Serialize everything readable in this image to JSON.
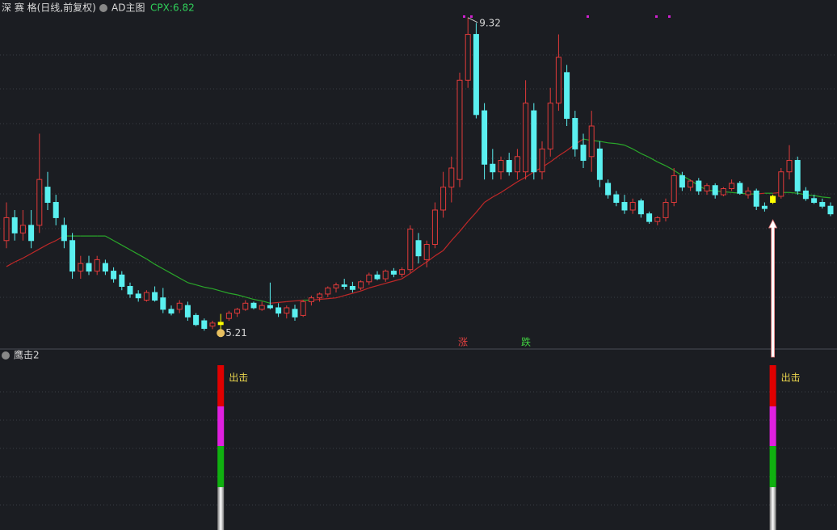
{
  "chart_data": {
    "type": "candlestick",
    "title": "深 赛 格(日线,前复权)",
    "indicator": "AD主图",
    "cpx_label": "CPX:",
    "cpx": 6.82,
    "rise_label": "涨",
    "fall_label": "跌",
    "max_label": 9.32,
    "min_label": 5.21,
    "panel2_title": "鹰击2",
    "signal_label": "出击",
    "ylim": [
      4.98,
      9.36
    ],
    "ohlc": [
      [
        6.4,
        6.9,
        6.3,
        6.7
      ],
      [
        6.7,
        6.8,
        6.4,
        6.5
      ],
      [
        6.5,
        6.8,
        6.4,
        6.6
      ],
      [
        6.6,
        6.8,
        6.3,
        6.4
      ],
      [
        6.6,
        7.8,
        6.5,
        7.2
      ],
      [
        7.1,
        7.3,
        6.8,
        6.9
      ],
      [
        6.9,
        7.0,
        6.6,
        6.7
      ],
      [
        6.6,
        6.7,
        6.3,
        6.4
      ],
      [
        6.4,
        6.5,
        5.9,
        6.0
      ],
      [
        6.0,
        6.2,
        5.9,
        6.1
      ],
      [
        6.1,
        6.2,
        5.95,
        6.0
      ],
      [
        6.0,
        6.2,
        5.95,
        6.15
      ],
      [
        6.1,
        6.15,
        5.95,
        6.0
      ],
      [
        6.0,
        6.05,
        5.85,
        5.9
      ],
      [
        5.95,
        6.0,
        5.75,
        5.8
      ],
      [
        5.8,
        5.85,
        5.65,
        5.7
      ],
      [
        5.7,
        5.75,
        5.6,
        5.65
      ],
      [
        5.62,
        5.75,
        5.6,
        5.72
      ],
      [
        5.72,
        5.8,
        5.6,
        5.62
      ],
      [
        5.65,
        5.78,
        5.45,
        5.5
      ],
      [
        5.5,
        5.55,
        5.42,
        5.45
      ],
      [
        5.5,
        5.62,
        5.45,
        5.58
      ],
      [
        5.55,
        5.6,
        5.35,
        5.4
      ],
      [
        5.42,
        5.45,
        5.28,
        5.3
      ],
      [
        5.35,
        5.38,
        5.22,
        5.25
      ],
      [
        5.28,
        5.35,
        5.24,
        5.32
      ],
      [
        5.33,
        5.44,
        5.21,
        5.3
      ],
      [
        5.38,
        5.48,
        5.35,
        5.45
      ],
      [
        5.45,
        5.52,
        5.4,
        5.5
      ],
      [
        5.5,
        5.62,
        5.48,
        5.58
      ],
      [
        5.58,
        5.6,
        5.5,
        5.52
      ],
      [
        5.5,
        5.6,
        5.48,
        5.55
      ],
      [
        5.55,
        5.85,
        5.5,
        5.52
      ],
      [
        5.52,
        5.58,
        5.4,
        5.45
      ],
      [
        5.45,
        5.55,
        5.38,
        5.52
      ],
      [
        5.5,
        5.56,
        5.35,
        5.4
      ],
      [
        5.42,
        5.62,
        5.4,
        5.6
      ],
      [
        5.6,
        5.68,
        5.55,
        5.65
      ],
      [
        5.65,
        5.72,
        5.6,
        5.7
      ],
      [
        5.7,
        5.8,
        5.66,
        5.78
      ],
      [
        5.78,
        5.85,
        5.72,
        5.82
      ],
      [
        5.82,
        5.9,
        5.76,
        5.8
      ],
      [
        5.8,
        5.86,
        5.72,
        5.76
      ],
      [
        5.78,
        5.88,
        5.75,
        5.86
      ],
      [
        5.86,
        5.98,
        5.82,
        5.95
      ],
      [
        5.95,
        6.0,
        5.88,
        5.9
      ],
      [
        5.9,
        6.02,
        5.86,
        6.0
      ],
      [
        6.0,
        6.04,
        5.92,
        5.96
      ],
      [
        5.96,
        6.05,
        5.92,
        6.02
      ],
      [
        6.02,
        6.6,
        5.98,
        6.55
      ],
      [
        6.4,
        6.5,
        6.1,
        6.2
      ],
      [
        6.15,
        6.4,
        6.05,
        6.35
      ],
      [
        6.35,
        6.9,
        6.3,
        6.8
      ],
      [
        6.8,
        7.3,
        6.7,
        7.1
      ],
      [
        7.1,
        7.5,
        6.9,
        7.35
      ],
      [
        7.2,
        8.6,
        7.1,
        8.5
      ],
      [
        8.5,
        9.32,
        8.4,
        9.1
      ],
      [
        9.1,
        9.25,
        8.0,
        8.05
      ],
      [
        8.1,
        8.2,
        7.2,
        7.4
      ],
      [
        7.4,
        7.6,
        7.2,
        7.3
      ],
      [
        7.3,
        7.5,
        7.2,
        7.45
      ],
      [
        7.45,
        7.55,
        7.25,
        7.3
      ],
      [
        7.3,
        7.6,
        7.2,
        7.5
      ],
      [
        7.3,
        8.5,
        7.2,
        8.2
      ],
      [
        8.1,
        8.2,
        7.2,
        7.3
      ],
      [
        7.3,
        7.7,
        7.2,
        7.6
      ],
      [
        7.6,
        8.4,
        7.5,
        8.2
      ],
      [
        8.2,
        9.1,
        8.1,
        8.8
      ],
      [
        8.6,
        8.7,
        7.9,
        8.0
      ],
      [
        8.0,
        8.1,
        7.5,
        7.6
      ],
      [
        7.65,
        7.8,
        7.35,
        7.45
      ],
      [
        7.5,
        8.1,
        7.3,
        7.9
      ],
      [
        7.6,
        7.7,
        7.1,
        7.2
      ],
      [
        7.15,
        7.2,
        6.95,
        7.0
      ],
      [
        7.0,
        7.05,
        6.85,
        6.9
      ],
      [
        6.9,
        7.0,
        6.75,
        6.8
      ],
      [
        6.8,
        6.95,
        6.75,
        6.9
      ],
      [
        6.92,
        6.95,
        6.7,
        6.75
      ],
      [
        6.75,
        6.78,
        6.62,
        6.65
      ],
      [
        6.65,
        6.72,
        6.6,
        6.7
      ],
      [
        6.7,
        6.95,
        6.65,
        6.9
      ],
      [
        6.9,
        7.35,
        6.85,
        7.25
      ],
      [
        7.25,
        7.3,
        7.05,
        7.1
      ],
      [
        7.1,
        7.2,
        7.05,
        7.18
      ],
      [
        7.18,
        7.22,
        7.0,
        7.05
      ],
      [
        7.05,
        7.15,
        7.0,
        7.12
      ],
      [
        7.12,
        7.15,
        6.95,
        7.0
      ],
      [
        7.0,
        7.1,
        6.98,
        7.08
      ],
      [
        7.08,
        7.2,
        7.05,
        7.15
      ],
      [
        7.15,
        7.18,
        7.0,
        7.02
      ],
      [
        7.0,
        7.1,
        6.95,
        7.05
      ],
      [
        7.05,
        7.08,
        6.8,
        6.85
      ],
      [
        6.85,
        6.9,
        6.78,
        6.82
      ],
      [
        6.9,
        7.0,
        6.88,
        6.98
      ],
      [
        6.98,
        7.35,
        6.95,
        7.3
      ],
      [
        7.3,
        7.65,
        7.2,
        7.45
      ],
      [
        7.45,
        7.5,
        7.0,
        7.05
      ],
      [
        7.05,
        7.1,
        6.92,
        6.95
      ],
      [
        6.95,
        7.0,
        6.88,
        6.9
      ],
      [
        6.9,
        6.95,
        6.82,
        6.85
      ],
      [
        6.85,
        6.9,
        6.72,
        6.75
      ]
    ],
    "ma": [
      6.06,
      6.12,
      6.17,
      6.23,
      6.29,
      6.35,
      6.4,
      6.46,
      6.46,
      6.46,
      6.46,
      6.46,
      6.46,
      6.4,
      6.34,
      6.28,
      6.22,
      6.16,
      6.09,
      6.03,
      5.97,
      5.91,
      5.85,
      5.82,
      5.79,
      5.77,
      5.74,
      5.71,
      5.69,
      5.66,
      5.63,
      5.61,
      5.58,
      5.59,
      5.6,
      5.61,
      5.62,
      5.62,
      5.63,
      5.64,
      5.65,
      5.68,
      5.71,
      5.74,
      5.78,
      5.81,
      5.84,
      5.87,
      5.9,
      5.97,
      6.05,
      6.12,
      6.2,
      6.27,
      6.4,
      6.52,
      6.65,
      6.77,
      6.9,
      6.97,
      7.03,
      7.1,
      7.17,
      7.23,
      7.3,
      7.36,
      7.43,
      7.51,
      7.58,
      7.66,
      7.73,
      7.71,
      7.7,
      7.68,
      7.67,
      7.65,
      7.6,
      7.54,
      7.49,
      7.43,
      7.38,
      7.32,
      7.25,
      7.19,
      7.12,
      7.06,
      7.05,
      7.04,
      7.03,
      7.02,
      7.01,
      7.01,
      7.02,
      7.02,
      7.03,
      7.03,
      7.02,
      7.0,
      6.99,
      6.97,
      6.96
    ],
    "signal": [
      0,
      0,
      0,
      0,
      0,
      0,
      0,
      0,
      0,
      0,
      0,
      0,
      0,
      0,
      0,
      0,
      0,
      0,
      0,
      0,
      0,
      0,
      0,
      0,
      0,
      0,
      1,
      0,
      0,
      0,
      0,
      0,
      0,
      0,
      0,
      0,
      0,
      0,
      0,
      0,
      0,
      0,
      0,
      0,
      0,
      0,
      0,
      0,
      0,
      0,
      0,
      0,
      0,
      0,
      0,
      0,
      0,
      0,
      0,
      0,
      0,
      0,
      0,
      0,
      0,
      0,
      0,
      0,
      0,
      0,
      0,
      0,
      0,
      0,
      0,
      0,
      0,
      0,
      0,
      0,
      0,
      0,
      0,
      0,
      0,
      0,
      0,
      0,
      0,
      0,
      0,
      0,
      0,
      1,
      0,
      0,
      0,
      0,
      0,
      0,
      0
    ]
  }
}
